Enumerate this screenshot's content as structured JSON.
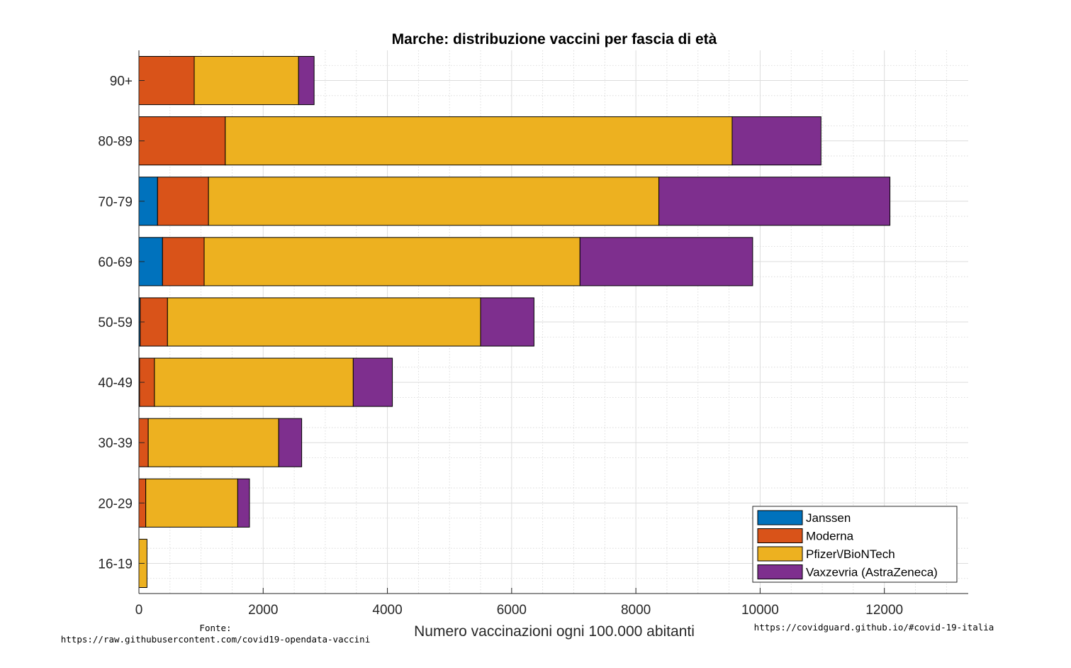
{
  "chart_data": {
    "type": "bar",
    "orientation": "horizontal",
    "stacked": true,
    "title": "Marche: distribuzione vaccini per fascia di età",
    "xlabel": "Numero vaccinazioni ogni 100.000 abitanti",
    "ylabel": "",
    "xlim": [
      0,
      13350
    ],
    "xticks": [
      0,
      2000,
      4000,
      6000,
      8000,
      10000,
      12000
    ],
    "grid": true,
    "legend_position": "bottom-right",
    "categories": [
      "90+",
      "80-89",
      "70-79",
      "60-69",
      "50-59",
      "40-49",
      "30-39",
      "20-29",
      "16-19"
    ],
    "series": [
      {
        "name": "Janssen",
        "color": "#0072BD",
        "values": [
          0,
          0,
          300,
          380,
          20,
          10,
          0,
          0,
          0
        ]
      },
      {
        "name": "Moderna",
        "color": "#D95319",
        "values": [
          890,
          1390,
          820,
          670,
          440,
          240,
          150,
          110,
          0
        ]
      },
      {
        "name": "Pfizer\\/BioNTech",
        "color": "#EDB120",
        "values": [
          1680,
          8160,
          7250,
          6050,
          5040,
          3200,
          2100,
          1480,
          130
        ]
      },
      {
        "name": "Vaxzevria (AstraZeneca)",
        "color": "#7E2F8E",
        "values": [
          250,
          1430,
          3720,
          2780,
          860,
          630,
          370,
          190,
          0
        ]
      }
    ]
  },
  "footer": {
    "source_label": "Fonte:",
    "source_url": "https://raw.githubusercontent.com/covid19-opendata-vaccini",
    "site_url": "https://covidguard.github.io/#covid-19-italia"
  }
}
